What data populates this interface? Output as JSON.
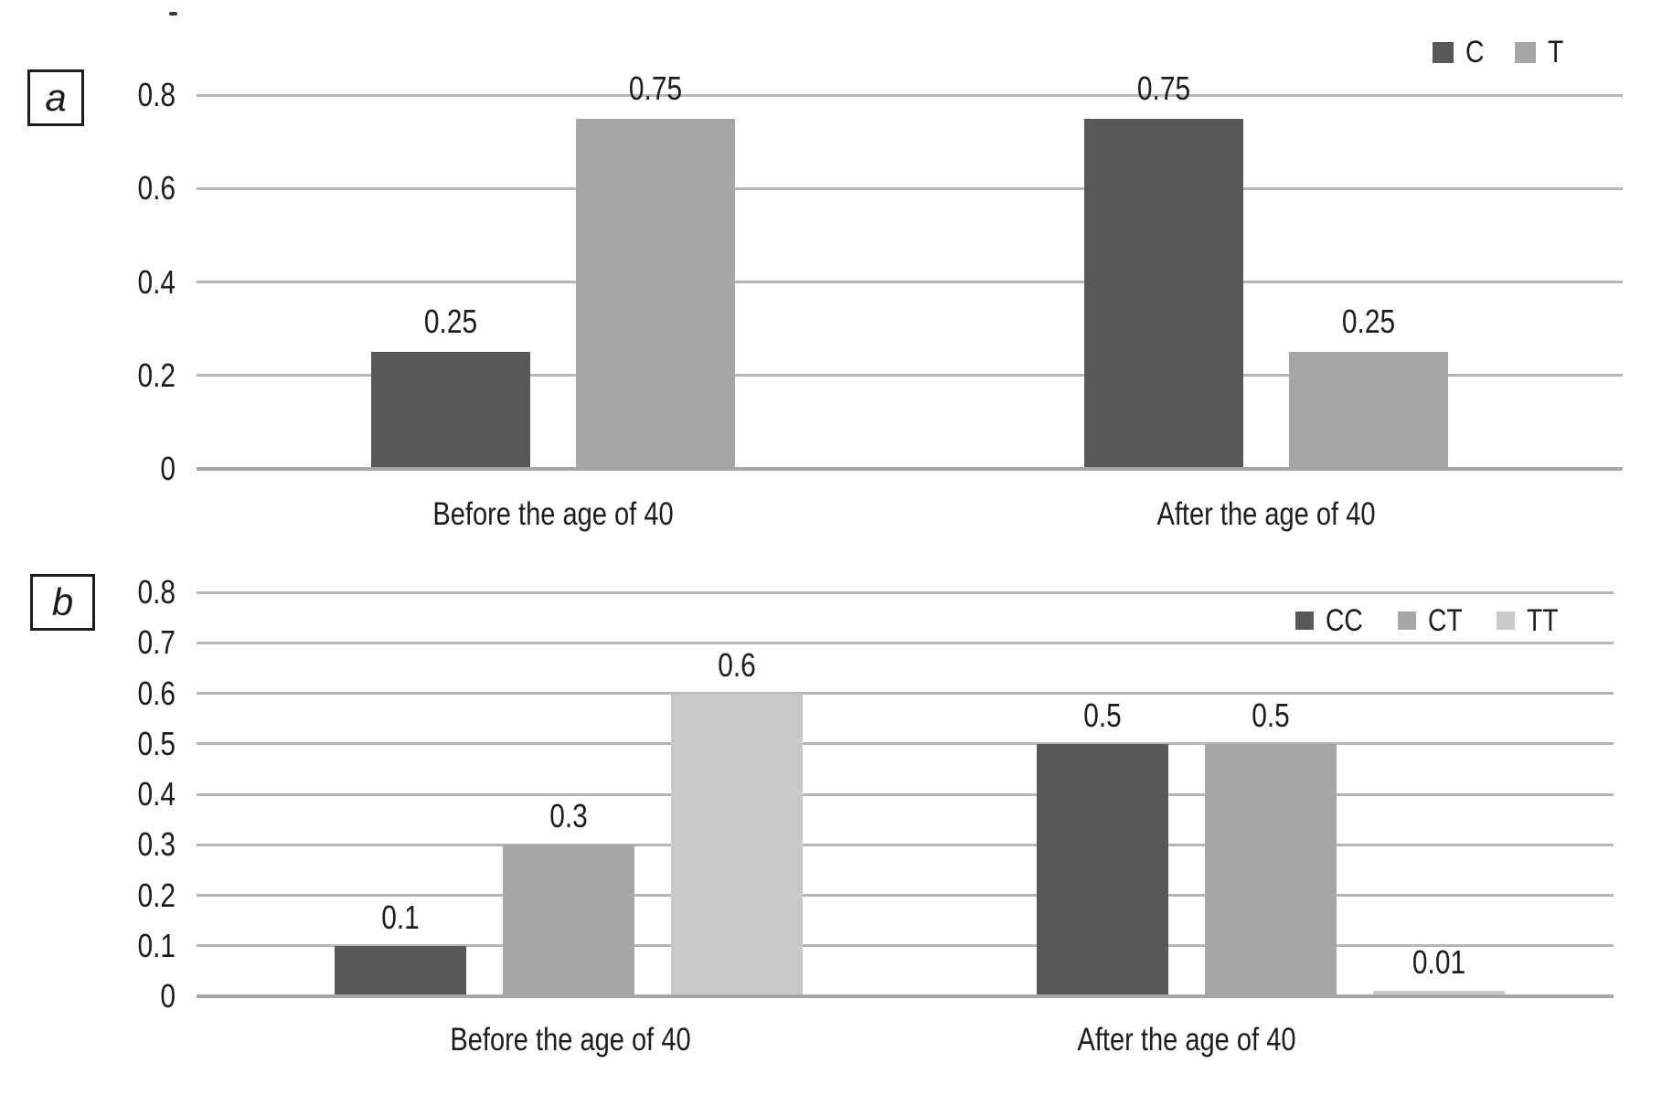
{
  "figure_background": "#ffffff",
  "style": {
    "grid_color": "#b6b6b6",
    "axis_line_color": "#a6a6a6",
    "text_color": "#1c1c1c",
    "series_dark": "#595757",
    "series_medium": "#a6a6a6",
    "series_light": "#c9c9c9"
  },
  "chart_data": [
    {
      "type": "bar",
      "panel_label": "a",
      "title": "",
      "xlabel": "",
      "ylabel": "",
      "categories": [
        "Before the age of 40",
        "After the age of 40"
      ],
      "series": [
        {
          "name": "C",
          "color": "#595757",
          "values": [
            0.25,
            0.75
          ]
        },
        {
          "name": "T",
          "color": "#a6a6a6",
          "values": [
            0.75,
            0.25
          ]
        }
      ],
      "bar_value_labels": [
        [
          "0.25",
          "0.75"
        ],
        [
          "0.75",
          "0.25"
        ]
      ],
      "yticks": [
        "0.8",
        "0.6",
        "0.4",
        "0.2",
        "0"
      ],
      "ytick_values": [
        0.8,
        0.6,
        0.4,
        0.2,
        0
      ],
      "ylim": [
        0,
        0.8
      ],
      "grid": true,
      "legend_entries": [
        "C",
        "T"
      ],
      "legend_position": "top-right"
    },
    {
      "type": "bar",
      "panel_label": "b",
      "title": "",
      "xlabel": "",
      "ylabel": "",
      "categories": [
        "Before the age of 40",
        "After the age of 40"
      ],
      "series": [
        {
          "name": "CC",
          "color": "#595757",
          "values": [
            0.1,
            0.5
          ]
        },
        {
          "name": "CT",
          "color": "#a6a6a6",
          "values": [
            0.3,
            0.5
          ]
        },
        {
          "name": "TT",
          "color": "#c9c9c9",
          "values": [
            0.6,
            0.01
          ]
        }
      ],
      "bar_value_labels": [
        [
          "0.1",
          "0.3",
          "0.6"
        ],
        [
          "0.5",
          "0.5",
          "0.01"
        ]
      ],
      "yticks": [
        "0.8",
        "0.7",
        "0.6",
        "0.5",
        "0.4",
        "0.3",
        "0.2",
        "0.1",
        "0"
      ],
      "ytick_values": [
        0.8,
        0.7,
        0.6,
        0.5,
        0.4,
        0.3,
        0.2,
        0.1,
        0
      ],
      "ylim": [
        0,
        0.8
      ],
      "grid": true,
      "legend_entries": [
        "CC",
        "CT",
        "TT"
      ],
      "legend_position": "inside-top-right"
    }
  ]
}
